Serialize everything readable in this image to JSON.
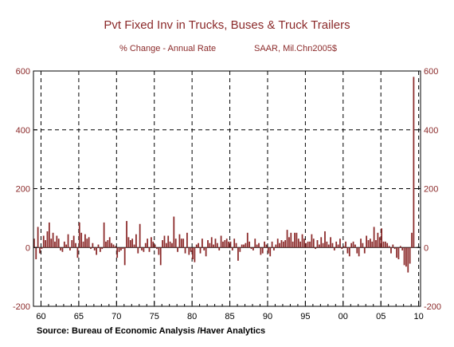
{
  "chart_data": {
    "type": "bar",
    "title": "Pvt Fixed Inv in Trucks, Buses & Truck Trailers",
    "subtitle_left": "% Change - Annual Rate",
    "subtitle_right": "SAAR, Mil.Chn2005$",
    "source": "Source:  Bureau of Economic Analysis /Haver Analytics",
    "ylim": [
      -200,
      600
    ],
    "yticks": [
      -200,
      0,
      200,
      400,
      600
    ],
    "ytick_labels": [
      "-200",
      "0",
      "200",
      "400",
      "600"
    ],
    "x_start_quarter": "1959Q1",
    "x_end_quarter": "2009Q4",
    "xticks": [
      1960,
      1965,
      1970,
      1975,
      1980,
      1985,
      1990,
      1995,
      2000,
      2005,
      2010
    ],
    "xtick_labels": [
      "60",
      "65",
      "70",
      "75",
      "80",
      "85",
      "90",
      "95",
      "00",
      "05",
      "10"
    ],
    "grid": true,
    "bar_color": "#8b2a2a",
    "values": [
      30,
      -40,
      70,
      -20,
      -5,
      40,
      25,
      55,
      85,
      30,
      50,
      20,
      40,
      30,
      -10,
      -15,
      20,
      10,
      45,
      -10,
      25,
      40,
      15,
      -35,
      85,
      50,
      20,
      45,
      30,
      35,
      -5,
      15,
      -10,
      -25,
      10,
      -15,
      -5,
      85,
      20,
      25,
      35,
      15,
      10,
      5,
      -35,
      -15,
      -10,
      -5,
      -60,
      90,
      35,
      25,
      30,
      10,
      45,
      -20,
      80,
      -10,
      -15,
      15,
      30,
      -15,
      35,
      20,
      10,
      -5,
      -25,
      -60,
      25,
      40,
      15,
      40,
      20,
      15,
      105,
      30,
      -15,
      45,
      30,
      30,
      -20,
      50,
      -25,
      -15,
      -40,
      -50,
      10,
      15,
      -20,
      30,
      -10,
      -30,
      25,
      15,
      35,
      10,
      30,
      15,
      -10,
      40,
      20,
      25,
      30,
      20,
      20,
      -10,
      30,
      15,
      -45,
      -15,
      10,
      10,
      15,
      50,
      20,
      -5,
      -10,
      30,
      10,
      15,
      -25,
      -20,
      20,
      10,
      -20,
      -30,
      20,
      -10,
      10,
      30,
      15,
      25,
      20,
      25,
      60,
      35,
      50,
      20,
      50,
      50,
      30,
      20,
      45,
      30,
      15,
      20,
      20,
      45,
      30,
      -5,
      25,
      10,
      35,
      15,
      55,
      20,
      10,
      35,
      15,
      -10,
      20,
      10,
      30,
      -5,
      5,
      20,
      -20,
      -30,
      15,
      20,
      10,
      -20,
      -30,
      30,
      15,
      -20,
      40,
      25,
      30,
      20,
      70,
      25,
      50,
      35,
      65,
      20,
      20,
      15,
      5,
      -20,
      10,
      -5,
      -35,
      -40,
      5,
      -10,
      -60,
      -65,
      -85,
      -55,
      50,
      580
    ]
  }
}
